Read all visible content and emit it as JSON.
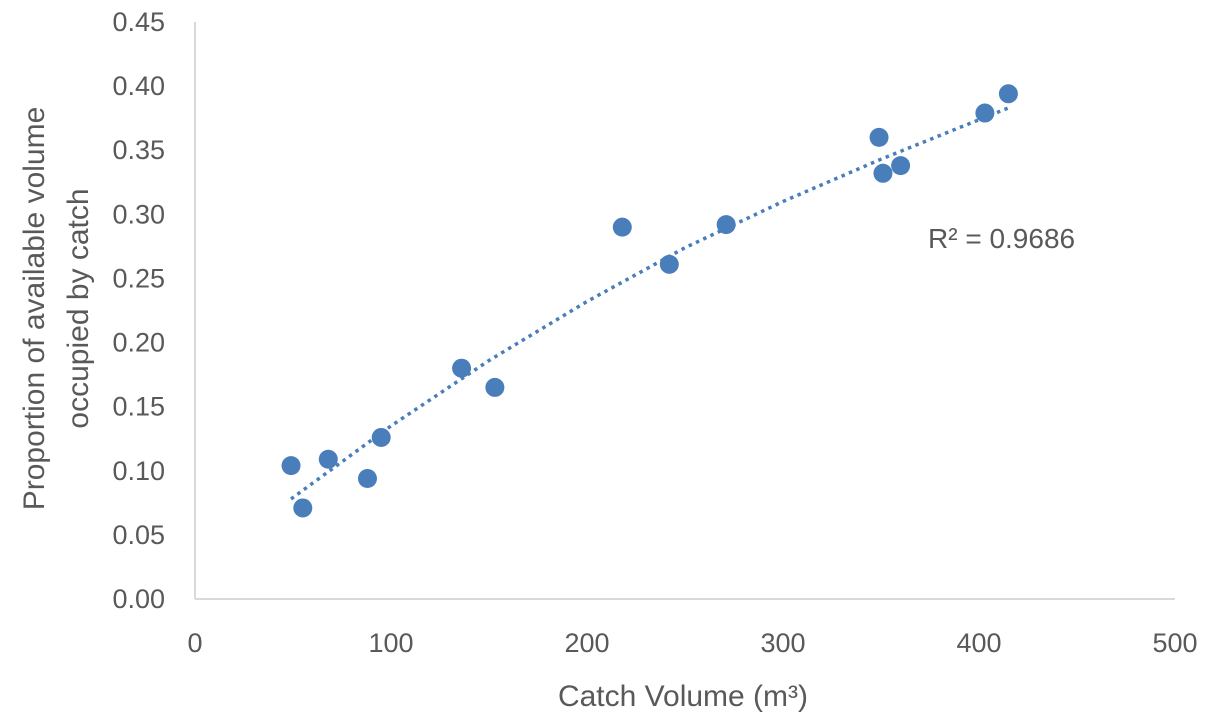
{
  "chart_data": {
    "type": "scatter",
    "title": "",
    "xlabel": "Catch Volume (m³)",
    "ylabel": "Proportion of available volume occupied by catch",
    "ylabel_lines": [
      "Proportion of available volume",
      "occupied by catch"
    ],
    "xlim": [
      0,
      500
    ],
    "ylim": [
      0,
      0.45
    ],
    "x_ticks": [
      "0",
      "100",
      "200",
      "300",
      "400",
      "500"
    ],
    "y_ticks": [
      "0.00",
      "0.05",
      "0.10",
      "0.15",
      "0.20",
      "0.25",
      "0.30",
      "0.35",
      "0.40",
      "0.45"
    ],
    "grid": false,
    "legend": "none",
    "series": [
      {
        "points": [
          {
            "x": 49,
            "y": 0.104
          },
          {
            "x": 55,
            "y": 0.071
          },
          {
            "x": 68,
            "y": 0.109
          },
          {
            "x": 88,
            "y": 0.094
          },
          {
            "x": 95,
            "y": 0.126
          },
          {
            "x": 136,
            "y": 0.18
          },
          {
            "x": 153,
            "y": 0.165
          },
          {
            "x": 218,
            "y": 0.29
          },
          {
            "x": 242,
            "y": 0.261
          },
          {
            "x": 271,
            "y": 0.292
          },
          {
            "x": 349,
            "y": 0.36
          },
          {
            "x": 351,
            "y": 0.332
          },
          {
            "x": 360,
            "y": 0.338
          },
          {
            "x": 403,
            "y": 0.379
          },
          {
            "x": 415,
            "y": 0.394
          }
        ]
      }
    ],
    "trendline": {
      "style": "dotted",
      "x_range": [
        49,
        415
      ],
      "points": [
        {
          "x": 49,
          "y": 0.078
        },
        {
          "x": 100,
          "y": 0.135
        },
        {
          "x": 150,
          "y": 0.186
        },
        {
          "x": 200,
          "y": 0.232
        },
        {
          "x": 250,
          "y": 0.274
        },
        {
          "x": 300,
          "y": 0.31
        },
        {
          "x": 350,
          "y": 0.343
        },
        {
          "x": 415,
          "y": 0.383
        }
      ]
    },
    "annotations": [
      {
        "text": "R² = 0.9686"
      }
    ],
    "colors": {
      "marker": "#4a7ebb",
      "trendline": "#4a7ebb",
      "axis": "#d9d9d9",
      "text": "#595959"
    }
  }
}
